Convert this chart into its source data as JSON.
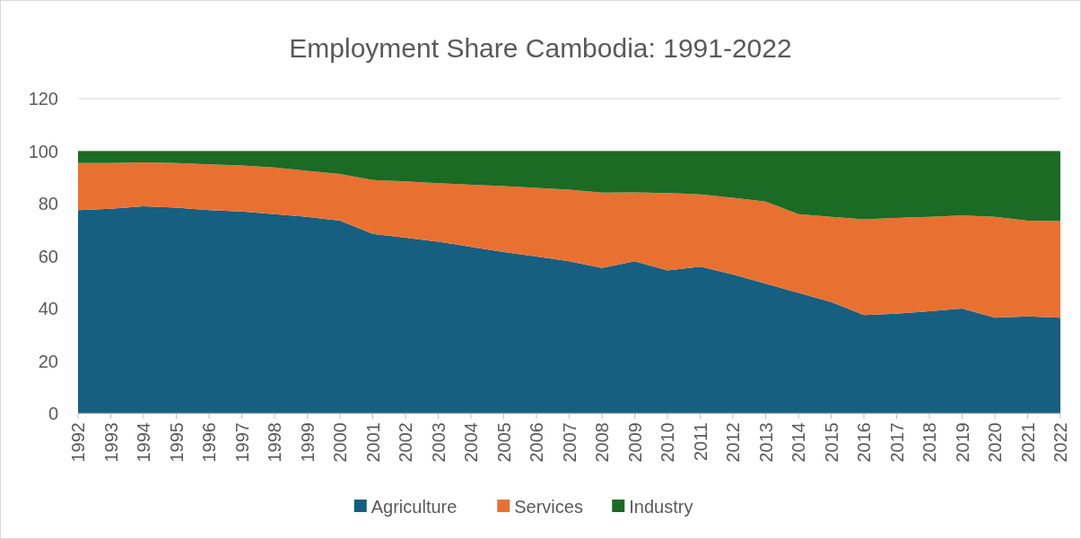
{
  "chart_data": {
    "type": "area",
    "stacked": true,
    "title": "Employment Share Cambodia: 1991-2022",
    "categories": [
      "1992",
      "1993",
      "1994",
      "1995",
      "1996",
      "1997",
      "1998",
      "1999",
      "2000",
      "2001",
      "2002",
      "2003",
      "2004",
      "2005",
      "2006",
      "2007",
      "2008",
      "2009",
      "2010",
      "2011",
      "2012",
      "2013",
      "2014",
      "2015",
      "2016",
      "2017",
      "2018",
      "2019",
      "2020",
      "2021",
      "2022"
    ],
    "series": [
      {
        "name": "Agriculture",
        "color": "#175f80",
        "values": [
          77.5,
          78,
          79,
          78.5,
          77.5,
          77,
          76,
          75,
          73.5,
          68.5,
          67,
          65.5,
          63.5,
          61.5,
          59.8,
          58,
          55.5,
          58,
          54.5,
          56,
          53,
          49.5,
          46,
          42.5,
          37.5,
          38,
          39,
          40,
          36.5,
          37,
          36.5
        ]
      },
      {
        "name": "Services",
        "color": "#e87132",
        "values": [
          18,
          17.5,
          16.7,
          17,
          17.5,
          17.5,
          17.8,
          17.5,
          17.8,
          20.5,
          21.5,
          22.3,
          23.7,
          25.2,
          26.2,
          27.3,
          28.7,
          26.3,
          29.5,
          27.5,
          29.2,
          31.3,
          30,
          32.5,
          36.5,
          36.5,
          36,
          35.5,
          38.5,
          36.5,
          36.8
        ]
      },
      {
        "name": "Industry",
        "color": "#1b6b25",
        "values": [
          4.5,
          4.5,
          4.3,
          4.5,
          5,
          5.5,
          6.2,
          7.5,
          8.7,
          11,
          11.5,
          12.2,
          12.8,
          13.3,
          14,
          14.7,
          15.8,
          15.7,
          16,
          16.5,
          17.8,
          19.2,
          24,
          25,
          26,
          25.5,
          25,
          24.5,
          25,
          26.5,
          26.7
        ]
      }
    ],
    "ylim": [
      0,
      120
    ],
    "yticks": [
      0,
      20,
      40,
      60,
      80,
      100,
      120
    ],
    "grid": "y",
    "legend": "bottom"
  }
}
